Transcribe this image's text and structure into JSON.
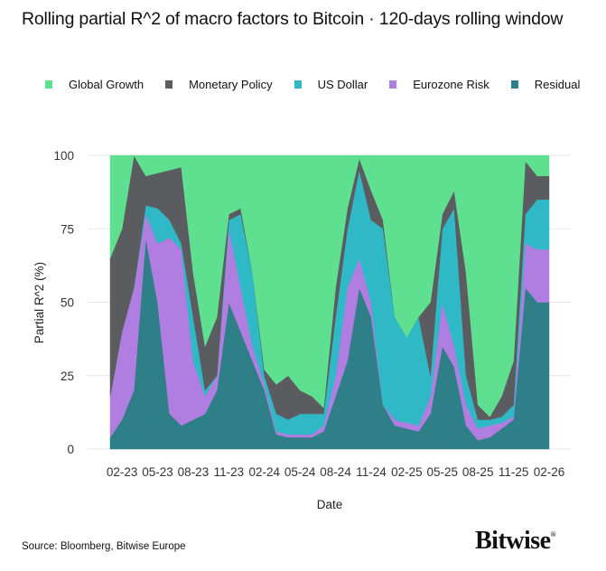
{
  "chart_data": {
    "type": "area",
    "stacked": true,
    "title": "Rolling partial R^2 of macro factors to Bitcoin · 120-days rolling window",
    "xlabel": "Date",
    "ylabel": "Partial R^2 (%)",
    "ylim": [
      0,
      100
    ],
    "yticks": [
      0,
      25,
      50,
      75,
      100
    ],
    "xlim": [
      "2023-01",
      "2026-02"
    ],
    "xticks": [
      {
        "date": "2023-02",
        "label": "02-23"
      },
      {
        "date": "2023-05",
        "label": "05-23"
      },
      {
        "date": "2023-08",
        "label": "08-23"
      },
      {
        "date": "2023-11",
        "label": "11-23"
      },
      {
        "date": "2024-02",
        "label": "02-24"
      },
      {
        "date": "2024-05",
        "label": "05-24"
      },
      {
        "date": "2024-08",
        "label": "08-24"
      },
      {
        "date": "2024-11",
        "label": "11-24"
      },
      {
        "date": "2025-02",
        "label": "02-25"
      },
      {
        "date": "2025-05",
        "label": "05-25"
      },
      {
        "date": "2025-08",
        "label": "08-25"
      },
      {
        "date": "2025-11",
        "label": "11-25"
      },
      {
        "date": "2026-02",
        "label": "02-26"
      }
    ],
    "grid": "horizontal",
    "legend_position": "top",
    "x": [
      "2023-01",
      "2023-02",
      "2023-03",
      "2023-04",
      "2023-05",
      "2023-06",
      "2023-07",
      "2023-08",
      "2023-09",
      "2023-10",
      "2023-11",
      "2023-12",
      "2024-01",
      "2024-02",
      "2024-03",
      "2024-04",
      "2024-05",
      "2024-06",
      "2024-07",
      "2024-08",
      "2024-09",
      "2024-10",
      "2024-11",
      "2024-12",
      "2025-01",
      "2025-02",
      "2025-03",
      "2025-04",
      "2025-05",
      "2025-06",
      "2025-07",
      "2025-08",
      "2025-09",
      "2025-10",
      "2025-11",
      "2025-12",
      "2026-01",
      "2026-02"
    ],
    "series": [
      {
        "name": "Residual",
        "color": "#2e7f88",
        "values": [
          4,
          10,
          20,
          72,
          50,
          12,
          8,
          10,
          12,
          20,
          50,
          40,
          30,
          20,
          5,
          4,
          4,
          4,
          6,
          18,
          30,
          55,
          45,
          15,
          8,
          7,
          6,
          12,
          35,
          28,
          8,
          3,
          4,
          7,
          10,
          55,
          50,
          50
        ]
      },
      {
        "name": "Eurozone Risk",
        "color": "#b07de0",
        "values": [
          14,
          30,
          35,
          8,
          20,
          60,
          60,
          20,
          6,
          5,
          25,
          15,
          5,
          2,
          1,
          1,
          1,
          1,
          2,
          7,
          25,
          10,
          5,
          0,
          2,
          2,
          2,
          6,
          15,
          7,
          7,
          4,
          4,
          2,
          1,
          15,
          18,
          18
        ]
      },
      {
        "name": "US Dollar",
        "color": "#2fb8c6",
        "values": [
          0,
          0,
          0,
          3,
          12,
          6,
          2,
          15,
          2,
          0,
          3,
          25,
          25,
          3,
          6,
          5,
          7,
          7,
          4,
          20,
          20,
          30,
          28,
          60,
          35,
          29,
          37,
          7,
          25,
          47,
          10,
          3,
          2,
          2,
          4,
          10,
          17,
          17
        ]
      },
      {
        "name": "Monetary Policy",
        "color": "#5b5c60",
        "values": [
          47,
          35,
          45,
          10,
          12,
          17,
          26,
          15,
          15,
          20,
          2,
          2,
          0,
          2,
          10,
          15,
          8,
          6,
          2,
          10,
          7,
          4,
          10,
          3,
          0,
          0,
          0,
          25,
          5,
          6,
          35,
          5,
          1,
          7,
          15,
          18,
          8,
          8
        ]
      },
      {
        "name": "Global Growth",
        "color": "#5fe090",
        "values": [
          35,
          25,
          0,
          7,
          6,
          5,
          4,
          40,
          65,
          55,
          20,
          18,
          40,
          73,
          78,
          75,
          80,
          82,
          86,
          45,
          18,
          1,
          12,
          22,
          55,
          62,
          55,
          50,
          20,
          12,
          40,
          85,
          89,
          82,
          70,
          2,
          7,
          7
        ]
      }
    ],
    "legend_order": [
      "Global Growth",
      "Monetary Policy",
      "US Dollar",
      "Eurozone Risk",
      "Residual"
    ]
  },
  "footer": {
    "source": "Source: Bloomberg, Bitwise Europe",
    "logo": "Bitwise"
  }
}
